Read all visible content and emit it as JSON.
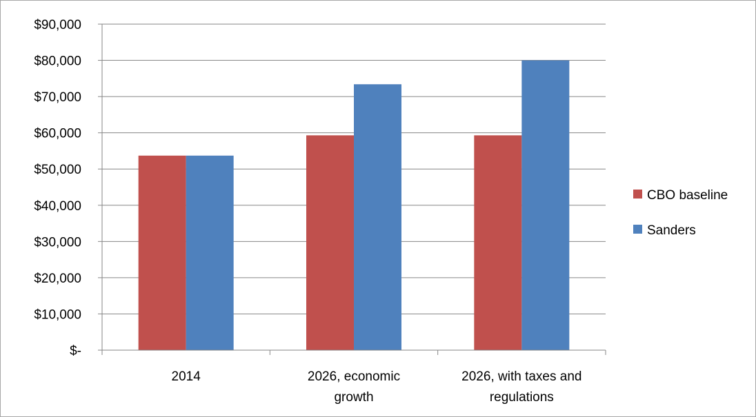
{
  "chart_data": {
    "type": "bar",
    "title": "",
    "xlabel": "",
    "ylabel": "",
    "categories": [
      "2014",
      "2026, economic growth",
      "2026, with taxes and regulations"
    ],
    "category_label_lines": [
      [
        "2014"
      ],
      [
        "2026, economic",
        "growth"
      ],
      [
        "2026, with taxes and",
        "regulations"
      ]
    ],
    "series": [
      {
        "name": "CBO baseline",
        "color": "#c0504d",
        "values": [
          53700,
          59300,
          59300
        ]
      },
      {
        "name": "Sanders",
        "color": "#4f81bd",
        "values": [
          53700,
          73400,
          80000
        ]
      }
    ],
    "ylim": [
      0,
      90000
    ],
    "yticks": [
      0,
      10000,
      20000,
      30000,
      40000,
      50000,
      60000,
      70000,
      80000,
      90000
    ],
    "ytick_labels": [
      "$-",
      "$10,000",
      "$20,000",
      "$30,000",
      "$40,000",
      "$50,000",
      "$60,000",
      "$70,000",
      "$80,000",
      "$90,000"
    ],
    "grid": true,
    "legend_position": "right"
  }
}
